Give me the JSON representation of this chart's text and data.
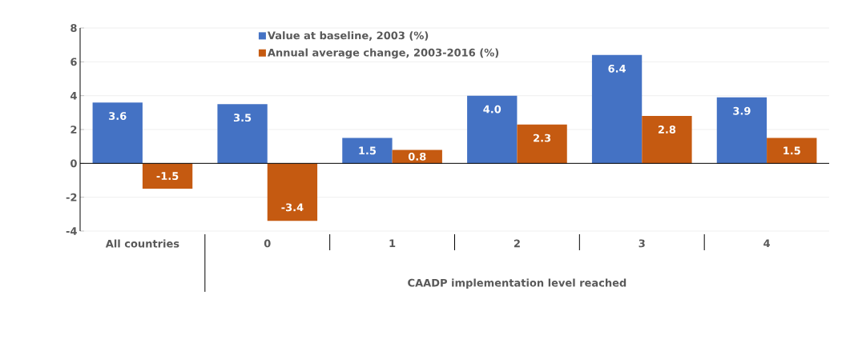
{
  "chart_data": {
    "type": "bar",
    "xlabel": "CAADP implementation level reached",
    "categories": [
      "All countries",
      "0",
      "1",
      "2",
      "3",
      "4"
    ],
    "series": [
      {
        "name": "Value at baseline, 2003 (%)",
        "color": "#4472c4",
        "values": [
          3.6,
          3.5,
          1.5,
          4.0,
          6.4,
          3.9
        ],
        "value_labels": [
          "3.6",
          "3.5",
          "1.5",
          "4.0",
          "6.4",
          "3.9"
        ]
      },
      {
        "name": "Annual average change, 2003-2016 (%)",
        "color": "#c55a11",
        "values": [
          -1.5,
          -3.4,
          0.8,
          2.3,
          2.8,
          1.5
        ],
        "value_labels": [
          "-1.5",
          "-3.4",
          "0.8",
          "2.3",
          "2.8",
          "1.5"
        ]
      }
    ],
    "ylim": [
      -4,
      8
    ],
    "yticks": [
      -4,
      -2,
      0,
      2,
      4,
      6,
      8
    ],
    "grid": "y",
    "legend": "top"
  }
}
